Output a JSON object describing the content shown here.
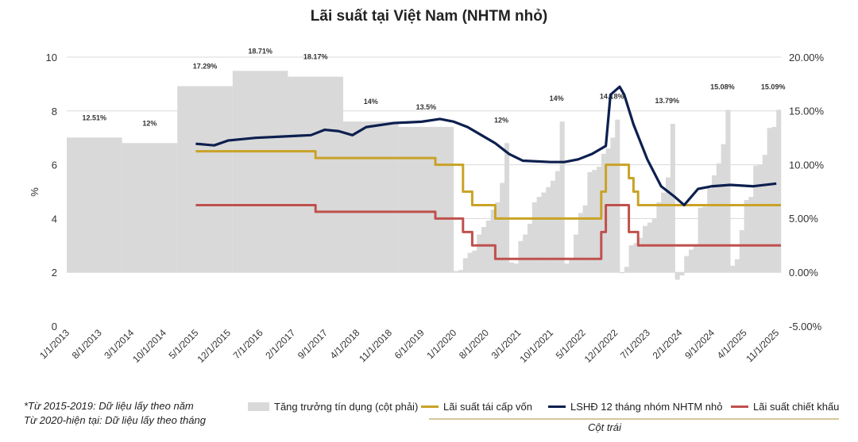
{
  "chart_data": {
    "type": "bar+line",
    "title": "Lãi suất tại Việt Nam (NHTM nhỏ)",
    "ylabel_left": "%",
    "ylim_left": [
      0,
      10
    ],
    "yticks_left": [
      "0",
      "2",
      "4",
      "6",
      "8",
      "10"
    ],
    "ylim_right": [
      -5,
      20
    ],
    "yticks_right": [
      "-5.00%",
      "0.00%",
      "5.00%",
      "10.00%",
      "15.00%",
      "20.00%"
    ],
    "grid": true,
    "x_ticks": [
      "1/1/2013",
      "8/1/2013",
      "3/1/2014",
      "10/1/2014",
      "5/1/2015",
      "12/1/2015",
      "7/1/2016",
      "2/1/2017",
      "9/1/2017",
      "4/1/2018",
      "11/1/2018",
      "6/1/2019",
      "1/1/2020",
      "8/1/2020",
      "3/1/2021",
      "10/1/2021",
      "5/1/2022",
      "12/1/2022",
      "7/1/2023",
      "2/1/2024",
      "9/1/2024",
      "4/1/2025",
      "11/1/2025"
    ],
    "credit_growth": {
      "name": "Tăng trưởng tín dụng (cột phải)",
      "color": "#d9d9d9",
      "annual": [
        {
          "year": 2013,
          "value": 12.51,
          "label": "12.51%"
        },
        {
          "year": 2014,
          "value": 12,
          "label": "12%"
        },
        {
          "year": 2015,
          "value": 17.29,
          "label": "17.29%"
        },
        {
          "year": 2016,
          "value": 18.71,
          "label": "18.71%"
        },
        {
          "year": 2017,
          "value": 18.17,
          "label": "18.17%"
        },
        {
          "year": 2018,
          "value": 14,
          "label": "14%"
        },
        {
          "year": 2019,
          "value": 13.5,
          "label": "13.5%"
        }
      ],
      "monthly": [
        {
          "year": 2020,
          "values": [
            0.1,
            0.2,
            1.3,
            1.8,
            2.0,
            3.5,
            4.2,
            4.8,
            5.8,
            6.5,
            8.3,
            12.0
          ],
          "label": "12%"
        },
        {
          "year": 2021,
          "values": [
            0.9,
            0.8,
            2.9,
            3.5,
            4.5,
            6.5,
            7.0,
            7.4,
            7.9,
            8.5,
            9.4,
            14.0
          ],
          "label": "14%"
        },
        {
          "year": 2022,
          "values": [
            0.8,
            1.2,
            3.5,
            5.5,
            6.2,
            9.3,
            9.5,
            9.8,
            11.0,
            11.5,
            12.5,
            14.18
          ],
          "label": "14.18%"
        },
        {
          "year": 2023,
          "values": [
            -0.1,
            0.5,
            2.5,
            2.7,
            3.2,
            4.3,
            4.6,
            5.0,
            6.5,
            7.4,
            8.8,
            13.79
          ],
          "label": "13.79%"
        },
        {
          "year": 2024,
          "values": [
            -0.7,
            -0.3,
            1.5,
            2.1,
            2.6,
            6.0,
            6.1,
            7.8,
            9.0,
            10.1,
            11.9,
            15.08
          ],
          "label": "15.08%"
        },
        {
          "year": 2025,
          "values": [
            0.6,
            1.2,
            3.9,
            6.7,
            7.0,
            9.9,
            10.0,
            10.9,
            13.4,
            13.5,
            15.09
          ],
          "label": "15.09%"
        }
      ]
    },
    "series": [
      {
        "name": "Lãi suất tái cấp vốn",
        "color": "#c9a227",
        "step": true,
        "points": [
          [
            "2015-05",
            6.5
          ],
          [
            "2017-07",
            6.25
          ],
          [
            "2019-09",
            6.0
          ],
          [
            "2020-03",
            5.0
          ],
          [
            "2020-05",
            4.5
          ],
          [
            "2020-10",
            4.0
          ],
          [
            "2022-09",
            5.0
          ],
          [
            "2022-10",
            6.0
          ],
          [
            "2023-03",
            5.5
          ],
          [
            "2023-04",
            5.0
          ],
          [
            "2023-05",
            4.5
          ],
          [
            "2025-12",
            4.5
          ]
        ]
      },
      {
        "name": "LSHĐ 12 tháng nhóm NHTM nhỏ",
        "color": "#0d1f4f",
        "step": false,
        "points": [
          [
            "2015-05",
            6.78
          ],
          [
            "2015-09",
            6.72
          ],
          [
            "2015-12",
            6.9
          ],
          [
            "2016-06",
            7.0
          ],
          [
            "2016-12",
            7.05
          ],
          [
            "2017-06",
            7.1
          ],
          [
            "2017-09",
            7.3
          ],
          [
            "2017-12",
            7.25
          ],
          [
            "2018-03",
            7.1
          ],
          [
            "2018-06",
            7.4
          ],
          [
            "2018-12",
            7.55
          ],
          [
            "2019-06",
            7.6
          ],
          [
            "2019-10",
            7.7
          ],
          [
            "2020-01",
            7.6
          ],
          [
            "2020-04",
            7.4
          ],
          [
            "2020-07",
            7.1
          ],
          [
            "2020-10",
            6.8
          ],
          [
            "2021-01",
            6.4
          ],
          [
            "2021-04",
            6.15
          ],
          [
            "2021-10",
            6.1
          ],
          [
            "2022-01",
            6.1
          ],
          [
            "2022-04",
            6.2
          ],
          [
            "2022-07",
            6.4
          ],
          [
            "2022-10",
            6.7
          ],
          [
            "2022-11",
            8.6
          ],
          [
            "2023-01",
            8.9
          ],
          [
            "2023-02",
            8.6
          ],
          [
            "2023-04",
            7.5
          ],
          [
            "2023-07",
            6.2
          ],
          [
            "2023-10",
            5.2
          ],
          [
            "2024-01",
            4.8
          ],
          [
            "2024-03",
            4.5
          ],
          [
            "2024-06",
            5.1
          ],
          [
            "2024-09",
            5.2
          ],
          [
            "2025-01",
            5.25
          ],
          [
            "2025-06",
            5.2
          ],
          [
            "2025-11",
            5.3
          ]
        ]
      },
      {
        "name": "Lãi suất chiết khấu",
        "color": "#c0504d",
        "step": true,
        "points": [
          [
            "2015-05",
            4.5
          ],
          [
            "2017-07",
            4.25
          ],
          [
            "2019-09",
            4.0
          ],
          [
            "2020-03",
            3.5
          ],
          [
            "2020-05",
            3.0
          ],
          [
            "2020-10",
            2.5
          ],
          [
            "2022-09",
            3.5
          ],
          [
            "2022-10",
            4.5
          ],
          [
            "2023-03",
            3.5
          ],
          [
            "2023-05",
            3.0
          ],
          [
            "2025-12",
            3.0
          ]
        ]
      }
    ]
  },
  "notes": [
    "*Từ 2015-2019: Dữ liệu lấy theo năm",
    "Từ 2020-hiện tại: Dữ liệu lấy theo tháng"
  ],
  "legend": {
    "group_label": "Cột trái"
  }
}
